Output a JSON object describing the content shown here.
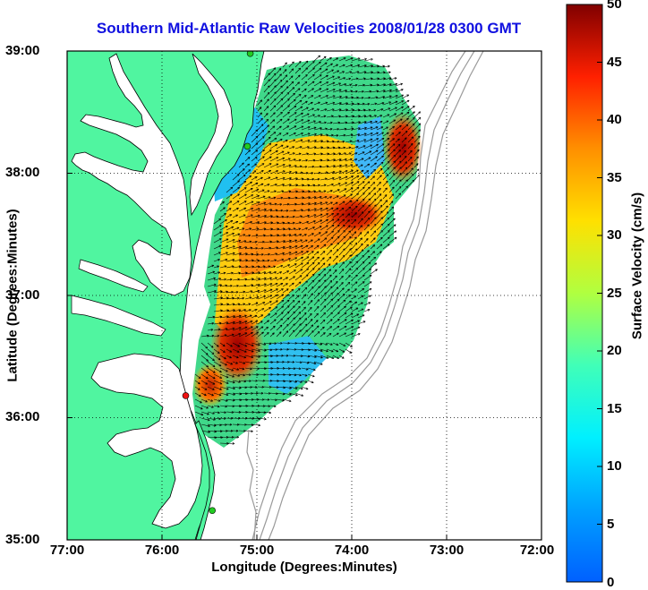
{
  "title": "Southern Mid-Atlantic Raw Velocities 2008/01/28 0300 GMT",
  "axes": {
    "xlabel": "Longitude (Degrees:Minutes)",
    "ylabel": "Latitude (Degrees:Minutes)",
    "xticks": [
      "77:00",
      "76:00",
      "75:00",
      "74:00",
      "73:00",
      "72:00"
    ],
    "yticks": [
      "39:00",
      "38:00",
      "37:00",
      "36:00",
      "35:00"
    ],
    "lon_range": [
      -77,
      -72
    ],
    "lat_range": [
      35,
      39
    ],
    "grid": "dotted"
  },
  "colorbar": {
    "label": "Surface Velocity (cm/s)",
    "ticks": [
      "50",
      "45",
      "40",
      "35",
      "30",
      "25",
      "20",
      "15",
      "10",
      "5",
      "0"
    ],
    "range": [
      0,
      50
    ],
    "colormap": "jet"
  },
  "colors": {
    "land": "#50f5a0",
    "title": "#1010e0",
    "bathymetry": "#9a9a9a",
    "station_green": "#22cc22",
    "station_red": "#ee1111"
  },
  "stations": [
    {
      "name": "station-north",
      "lon": -75.07,
      "lat": 38.98,
      "color": "green"
    },
    {
      "name": "station-mid",
      "lon": -75.1,
      "lat": 38.22,
      "color": "green"
    },
    {
      "name": "station-south-red",
      "lon": -75.75,
      "lat": 36.18,
      "color": "red"
    },
    {
      "name": "station-far-south",
      "lon": -75.47,
      "lat": 35.24,
      "color": "green"
    }
  ]
}
